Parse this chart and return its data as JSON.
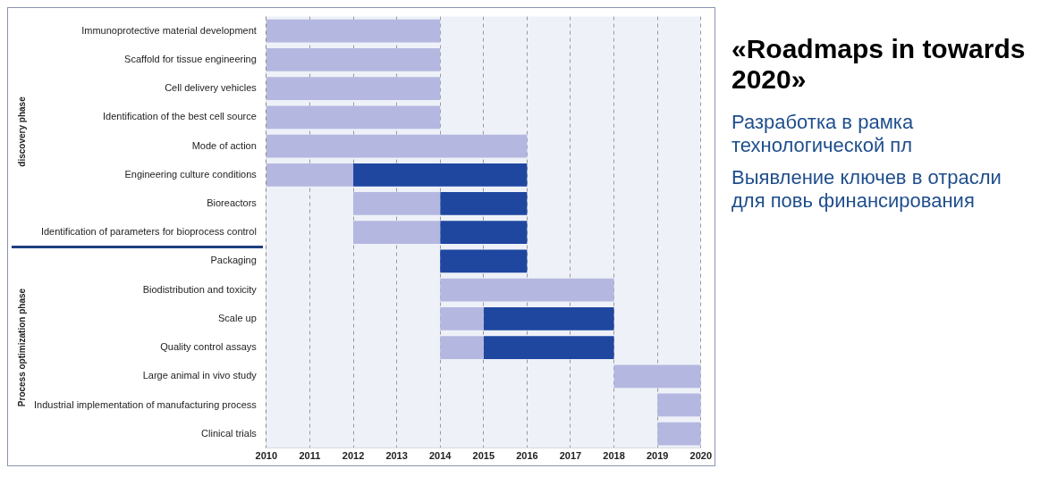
{
  "chart_data": {
    "type": "bar",
    "orientation": "horizontal",
    "title": "«Roadmaps in towards 2020»",
    "categories": [
      "Immunoprotective material development",
      "Scaffold for tissue engineering",
      "Cell delivery vehicles",
      "Identification of the best cell source",
      "Mode of action",
      "Engineering culture conditions",
      "Bioreactors",
      "Identification of parameters for bioprocess control",
      "Packaging",
      "Biodistribution and toxicity",
      "Scale up",
      "Quality control assays",
      "Large animal in vivo study",
      "Industrial implementation of manufacturing process",
      "Clinical trials"
    ],
    "series": [
      {
        "color": "#b4b8e0",
        "base": [
          2010,
          2010,
          2010,
          2010,
          2010,
          2010,
          2012,
          2012,
          null,
          2014,
          2014,
          2014,
          2018,
          2019,
          2019
        ],
        "values": [
          4,
          4,
          4,
          4,
          6,
          2,
          2,
          2,
          null,
          4,
          1,
          1,
          2,
          1,
          1
        ]
      },
      {
        "color": "#1f47a0",
        "base": [
          null,
          null,
          null,
          null,
          null,
          2012,
          2014,
          2014,
          2014,
          null,
          2015,
          2015,
          null,
          null,
          null
        ],
        "values": [
          null,
          null,
          null,
          null,
          null,
          4,
          2,
          2,
          2,
          null,
          3,
          3,
          null,
          null,
          null
        ]
      }
    ],
    "xlim": [
      2010,
      2020
    ],
    "xticks": [
      2010,
      2011,
      2012,
      2013,
      2014,
      2015,
      2016,
      2017,
      2018,
      2019,
      2020
    ],
    "grid": "x",
    "legend": false,
    "annotations": [
      "discovery phase",
      "Process optimization phase",
      "Разработка в рамка технологической пл",
      "Выявление ключев в отрасли для повь финансирования"
    ]
  }
}
